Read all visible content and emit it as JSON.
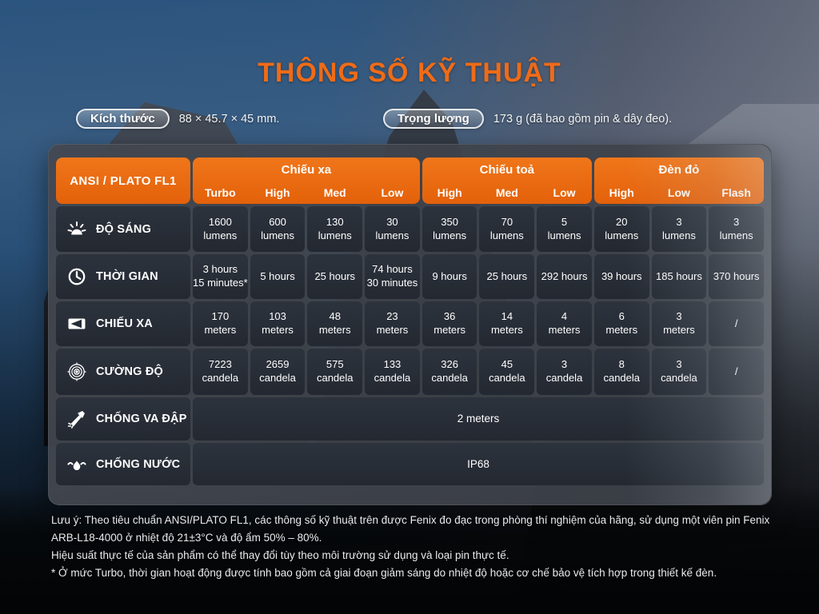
{
  "page": {
    "title": "THÔNG SỐ KỸ THUẬT"
  },
  "badges": {
    "dimensions": {
      "label": "Kích thước",
      "value": "88 × 45.7 × 45 mm."
    },
    "weight": {
      "label": "Trọng lượng",
      "value": "173 g (đã bao gồm pin & dây đeo)."
    }
  },
  "table": {
    "corner_label": "ANSI / PLATO FL1",
    "groups": [
      {
        "label": "Chiếu xa",
        "modes": [
          "Turbo",
          "High",
          "Med",
          "Low"
        ]
      },
      {
        "label": "Chiếu toả",
        "modes": [
          "High",
          "Med",
          "Low"
        ]
      },
      {
        "label": "Đèn đỏ",
        "modes": [
          "High",
          "Low",
          "Flash"
        ]
      }
    ],
    "rows": [
      {
        "icon": "brightness-icon",
        "label": "ĐỘ SÁNG",
        "cells": [
          "1600\nlumens",
          "600\nlumens",
          "130\nlumens",
          "30\nlumens",
          "350\nlumens",
          "70\nlumens",
          "5\nlumens",
          "20\nlumens",
          "3\nlumens",
          "3\nlumens"
        ]
      },
      {
        "icon": "runtime-clock-icon",
        "label": "THỜI GIAN",
        "cells": [
          "3 hours\n15 minutes*",
          "5 hours",
          "25 hours",
          "74 hours\n30 minutes",
          "9 hours",
          "25 hours",
          "292 hours",
          "39 hours",
          "185 hours",
          "370 hours"
        ]
      },
      {
        "icon": "beam-distance-icon",
        "label": "CHIẾU XA",
        "cells": [
          "170\nmeters",
          "103\nmeters",
          "48\nmeters",
          "23\nmeters",
          "36\nmeters",
          "14\nmeters",
          "4\nmeters",
          "6\nmeters",
          "3\nmeters",
          "/"
        ]
      },
      {
        "icon": "intensity-target-icon",
        "label": "CƯỜNG ĐỘ",
        "cells": [
          "7223\ncandela",
          "2659\ncandela",
          "575\ncandela",
          "133\ncandela",
          "326\ncandela",
          "45\ncandela",
          "3\ncandela",
          "8\ncandela",
          "3\ncandela",
          "/"
        ]
      }
    ],
    "span_rows": [
      {
        "icon": "impact-hammer-icon",
        "label": "CHỐNG VA ĐẬP",
        "value": "2 meters"
      },
      {
        "icon": "waterproof-splash-icon",
        "label": "CHỐNG NƯỚC",
        "value": "IP68"
      }
    ]
  },
  "notes": [
    "Lưu ý: Theo tiêu chuẩn ANSI/PLATO FL1, các thông số kỹ thuật trên được Fenix đo đạc trong phòng thí nghiệm của hãng, sử dụng một viên pin Fenix ARB-L18-4000 ở nhiệt độ 21±3°C và độ ẩm 50% – 80%.",
    "Hiệu suất thực tế của sản phẩm có thể thay đổi tùy theo môi trường sử dụng và loại pin thực tế.",
    "* Ở mức Turbo, thời gian hoạt động được tính bao gồm cả giai đoạn giảm sáng do nhiệt độ hoặc cơ chế bảo vệ tích hợp trong thiết kế đèn."
  ],
  "colors": {
    "accent_orange": "#ef6b17",
    "header_orange": "#e8670e",
    "cell_dark": "#272d36",
    "sky_blue": "#2b547e"
  }
}
